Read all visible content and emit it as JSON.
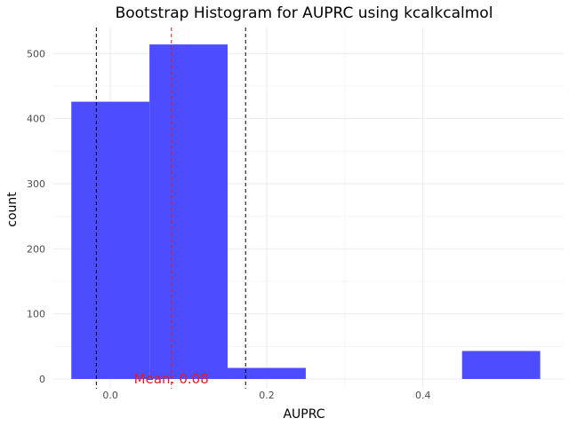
{
  "chart_data": {
    "type": "bar",
    "title": "Bootstrap Histogram for AUPRC using kcalkcalmol",
    "xlabel": "AUPRC",
    "ylabel": "count",
    "xlim": [
      -0.073,
      0.58
    ],
    "ylim": [
      -15,
      540
    ],
    "x_ticks": [
      0.0,
      0.2,
      0.4
    ],
    "x_tick_labels": [
      "0.0",
      "0.2",
      "0.4"
    ],
    "y_ticks": [
      0,
      100,
      200,
      300,
      400,
      500
    ],
    "y_tick_labels": [
      "0",
      "100",
      "200",
      "300",
      "400",
      "500"
    ],
    "bins": [
      {
        "x0": -0.05,
        "x1": 0.05,
        "count": 426
      },
      {
        "x0": 0.05,
        "x1": 0.15,
        "count": 514
      },
      {
        "x0": 0.15,
        "x1": 0.25,
        "count": 17
      },
      {
        "x0": 0.25,
        "x1": 0.35,
        "count": 0
      },
      {
        "x0": 0.35,
        "x1": 0.45,
        "count": 0
      },
      {
        "x0": 0.45,
        "x1": 0.55,
        "count": 43
      }
    ],
    "bar_color": "#4d4dff",
    "vlines": [
      {
        "x": -0.018,
        "color": "#000000",
        "style": "dashed"
      },
      {
        "x": 0.078,
        "color": "#e41a1c",
        "style": "dashed"
      },
      {
        "x": 0.173,
        "color": "#000000",
        "style": "dashed"
      }
    ],
    "annotation": {
      "text": "Mean: 0.08",
      "x": 0.078,
      "y": 0,
      "color": "#e41a1c"
    },
    "grid": true,
    "legend": "none"
  }
}
